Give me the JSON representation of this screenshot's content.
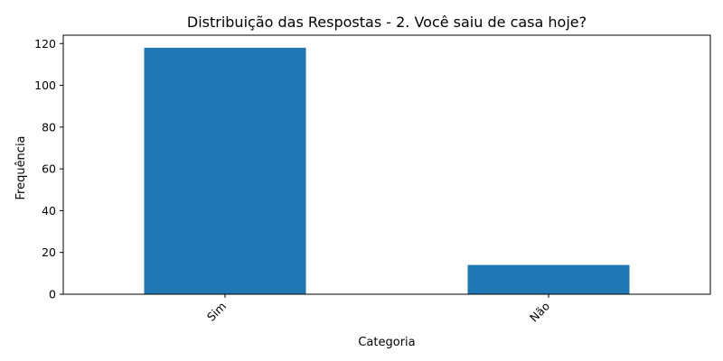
{
  "chart_data": {
    "type": "bar",
    "title": "Distribuição das Respostas - 2. Você saiu de casa hoje?",
    "xlabel": "Categoria",
    "ylabel": "Frequência",
    "categories": [
      "Sim",
      "Não"
    ],
    "values": [
      118,
      14
    ],
    "ylim": [
      0,
      124
    ],
    "yticks": [
      0,
      20,
      40,
      60,
      80,
      100,
      120
    ],
    "bar_color": "#1f77b4",
    "grid": false,
    "legend": "none"
  }
}
